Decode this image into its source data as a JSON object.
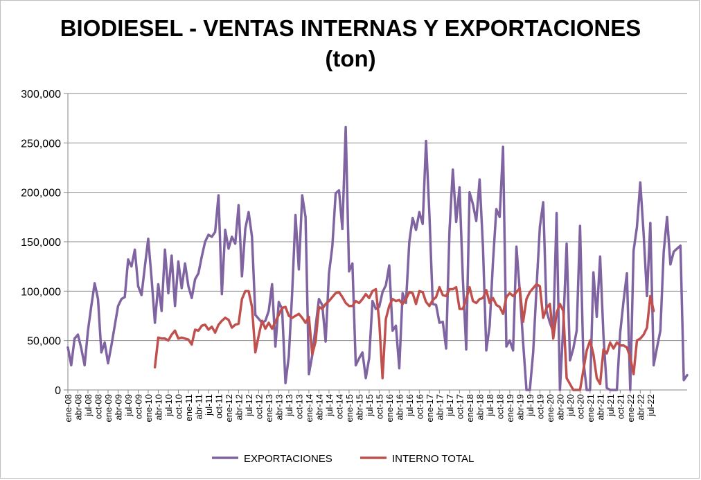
{
  "chart_data": {
    "type": "line",
    "title": "BIODIESEL - VENTAS INTERNAS Y EXPORTACIONES",
    "subtitle": "(ton)",
    "xlabel": "",
    "ylabel": "",
    "ylim": [
      0,
      300000
    ],
    "yticks": [
      "0",
      "50,000",
      "100,000",
      "150,000",
      "200,000",
      "250,000",
      "300,000"
    ],
    "grid": true,
    "legend_position": "bottom",
    "x_start": "ene-08",
    "xtick_labels": [
      "ene-08",
      "abr-08",
      "jul-08",
      "oct-08",
      "ene-09",
      "abr-09",
      "jul-09",
      "oct-09",
      "ene-10",
      "abr-10",
      "jul-10",
      "oct-10",
      "ene-11",
      "abr-11",
      "jul-11",
      "oct-11",
      "ene-12",
      "abr-12",
      "jul-12",
      "oct-12",
      "ene-13",
      "abr-13",
      "jul-13",
      "oct-13",
      "ene-14",
      "abr-14",
      "jul-14",
      "oct-14",
      "ene-15",
      "abr-15",
      "jul-15",
      "oct-15",
      "ene-16",
      "abr-16",
      "jul-16",
      "oct-16",
      "ene-17",
      "abr-17",
      "jul-17",
      "oct-17",
      "ene-18",
      "abr-18",
      "jul-18",
      "oct-18",
      "ene-19",
      "abr-19",
      "jul-19",
      "oct-19",
      "ene-20",
      "abr-20",
      "jul-20",
      "oct-20",
      "ene-21",
      "abr-21",
      "jul-21",
      "oct-21",
      "ene-22",
      "abr-22",
      "jul-22"
    ],
    "series": [
      {
        "name": "EXPORTACIONES",
        "color": "#8064a2",
        "values": [
          43000,
          25000,
          52000,
          56000,
          42000,
          25000,
          60000,
          85000,
          108000,
          92000,
          38000,
          48000,
          27000,
          45000,
          65000,
          85000,
          92000,
          94000,
          132000,
          125000,
          142000,
          105000,
          96000,
          125000,
          153000,
          113000,
          68000,
          107000,
          80000,
          142000,
          98000,
          136000,
          85000,
          130000,
          103000,
          128000,
          105000,
          93000,
          112000,
          118000,
          135000,
          150000,
          157000,
          155000,
          160000,
          197000,
          97000,
          162000,
          143000,
          155000,
          148000,
          187000,
          115000,
          163000,
          180000,
          155000,
          76000,
          72000,
          68000,
          70000,
          80000,
          107000,
          44000,
          89000,
          82000,
          7000,
          34000,
          98000,
          177000,
          122000,
          197000,
          175000,
          16000,
          35000,
          64000,
          92000,
          86000,
          49000,
          118000,
          145000,
          199000,
          202000,
          163000,
          266000,
          120000,
          128000,
          25000,
          32000,
          38000,
          12000,
          32000,
          90000,
          82000,
          84000,
          99000,
          106000,
          126000,
          60000,
          65000,
          22000,
          98000,
          88000,
          150000,
          174000,
          162000,
          180000,
          168000,
          252000,
          178000,
          87000,
          86000,
          68000,
          69000,
          42000,
          161000,
          223000,
          170000,
          205000,
          112000,
          41000,
          200000,
          188000,
          171000,
          213000,
          145000,
          40000,
          65000,
          130000,
          183000,
          175000,
          246000,
          44000,
          50000,
          40000,
          145000,
          100000,
          48000,
          0,
          0,
          38000,
          103000,
          165000,
          190000,
          80000,
          68000,
          59000,
          179000,
          0,
          65000,
          148000,
          30000,
          42000,
          60000,
          166000,
          30000,
          0,
          0,
          119000,
          74000,
          135000,
          55000,
          2000,
          0,
          0,
          0,
          58000,
          90000,
          118000,
          0,
          141000,
          165000,
          210000,
          158000,
          95000,
          169000,
          25000,
          43000,
          60000,
          140000,
          175000,
          127000,
          140000,
          143000,
          146000,
          10000,
          15000
        ]
      },
      {
        "name": "INTERNO TOTAL",
        "color": "#c0504d",
        "start_index": 26,
        "values": [
          23000,
          53000,
          52000,
          52000,
          50000,
          56000,
          60000,
          52000,
          53000,
          52000,
          51000,
          46000,
          61000,
          60000,
          65000,
          66000,
          61000,
          64000,
          58000,
          66000,
          70000,
          73000,
          71000,
          63000,
          66000,
          67000,
          92000,
          100000,
          100000,
          84000,
          38000,
          55000,
          70000,
          62000,
          68000,
          62000,
          69000,
          76000,
          83000,
          84000,
          75000,
          73000,
          75000,
          77000,
          73000,
          68000,
          74000,
          36000,
          49000,
          84000,
          82000,
          87000,
          90000,
          94000,
          98000,
          99000,
          94000,
          88000,
          85000,
          85000,
          90000,
          88000,
          92000,
          97000,
          93000,
          100000,
          102000,
          70000,
          12000,
          72000,
          85000,
          92000,
          90000,
          91000,
          87000,
          92000,
          99000,
          98000,
          87000,
          100000,
          99000,
          89000,
          85000,
          91000,
          94000,
          104000,
          96000,
          95000,
          102000,
          102000,
          104000,
          82000,
          82000,
          92000,
          104000,
          90000,
          88000,
          92000,
          93000,
          101000,
          88000,
          93000,
          86000,
          84000,
          77000,
          94000,
          98000,
          95000,
          99000,
          103000,
          69000,
          92000,
          99000,
          103000,
          107000,
          105000,
          73000,
          83000,
          87000,
          52000,
          78000,
          87000,
          80000,
          12000,
          6000,
          0,
          0,
          0,
          20000,
          40000,
          50000,
          36000,
          12000,
          6000,
          41000,
          37000,
          48000,
          42000,
          48000,
          45000,
          45000,
          43000,
          33000,
          16000,
          50000,
          52000,
          56000,
          63000,
          95000,
          80000
        ]
      }
    ]
  }
}
